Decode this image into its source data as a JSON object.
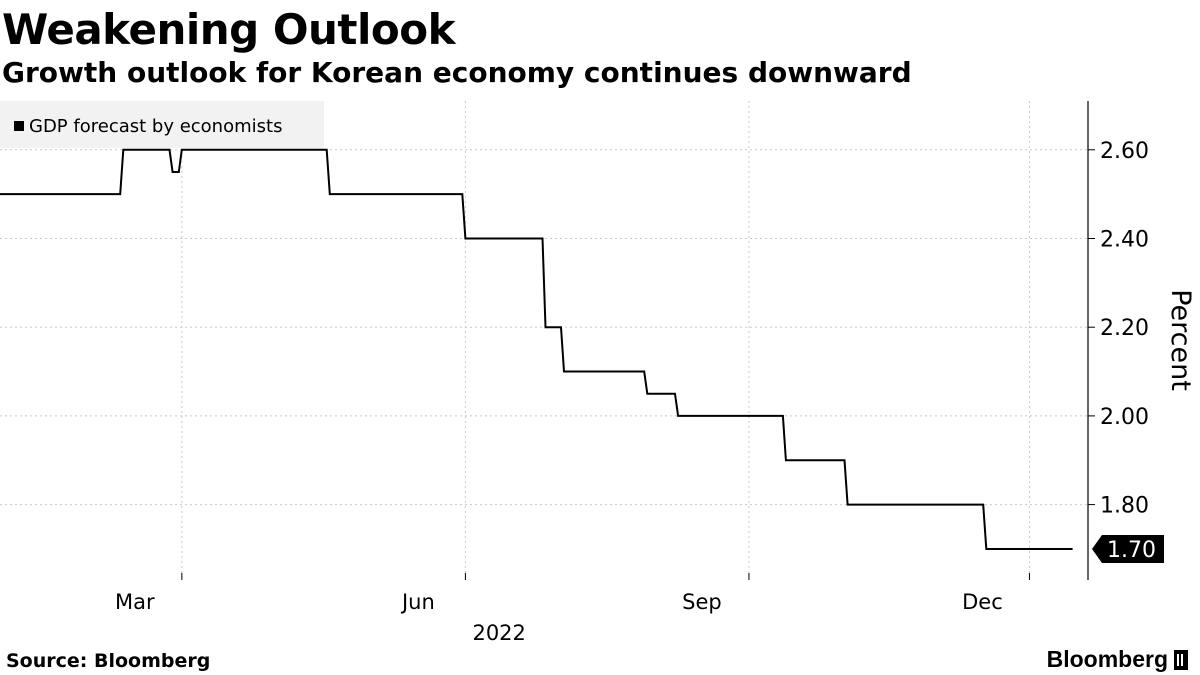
{
  "header": {
    "title": "Weakening Outlook",
    "subtitle": "Growth outlook for Korean economy continues downward"
  },
  "footer": {
    "source": "Source: Bloomberg",
    "brand": "Bloomberg"
  },
  "chart_data": {
    "type": "line",
    "title": "Weakening Outlook",
    "subtitle": "Growth outlook for Korean economy continues downward",
    "xlabel": "2022",
    "ylabel": "Percent",
    "xlim": [
      "2022-01-01",
      "2022-12-20"
    ],
    "ylim": [
      1.63,
      2.71
    ],
    "y_ticks": [
      1.8,
      2.0,
      2.2,
      2.4,
      2.6
    ],
    "y_tick_labels": [
      "1.80",
      "2.00",
      "2.20",
      "2.40",
      "2.60"
    ],
    "x_ticks": [
      {
        "date": "2022-03-01",
        "label": "Mar"
      },
      {
        "date": "2022-06-01",
        "label": "Jun"
      },
      {
        "date": "2022-09-01",
        "label": "Sep"
      },
      {
        "date": "2022-12-01",
        "label": "Dec"
      }
    ],
    "year_label": "2022",
    "grid": true,
    "legend_position": "top-left",
    "line_color": "#000000",
    "last_value_label": "1.70",
    "series": [
      {
        "name": "GDP forecast by economists",
        "points": [
          {
            "date": "2022-01-01",
            "value": 2.5
          },
          {
            "date": "2022-02-09",
            "value": 2.5
          },
          {
            "date": "2022-02-10",
            "value": 2.6
          },
          {
            "date": "2022-02-25",
            "value": 2.6
          },
          {
            "date": "2022-02-26",
            "value": 2.55
          },
          {
            "date": "2022-02-28",
            "value": 2.55
          },
          {
            "date": "2022-03-01",
            "value": 2.6
          },
          {
            "date": "2022-04-17",
            "value": 2.6
          },
          {
            "date": "2022-04-18",
            "value": 2.5
          },
          {
            "date": "2022-05-31",
            "value": 2.5
          },
          {
            "date": "2022-06-01",
            "value": 2.4
          },
          {
            "date": "2022-06-26",
            "value": 2.4
          },
          {
            "date": "2022-06-27",
            "value": 2.2
          },
          {
            "date": "2022-07-02",
            "value": 2.2
          },
          {
            "date": "2022-07-03",
            "value": 2.1
          },
          {
            "date": "2022-07-29",
            "value": 2.1
          },
          {
            "date": "2022-07-30",
            "value": 2.05
          },
          {
            "date": "2022-08-08",
            "value": 2.05
          },
          {
            "date": "2022-08-09",
            "value": 2.0
          },
          {
            "date": "2022-09-12",
            "value": 2.0
          },
          {
            "date": "2022-09-13",
            "value": 1.9
          },
          {
            "date": "2022-10-02",
            "value": 1.9
          },
          {
            "date": "2022-10-03",
            "value": 1.8
          },
          {
            "date": "2022-11-16",
            "value": 1.8
          },
          {
            "date": "2022-11-17",
            "value": 1.7
          },
          {
            "date": "2022-12-15",
            "value": 1.7
          }
        ]
      }
    ]
  }
}
